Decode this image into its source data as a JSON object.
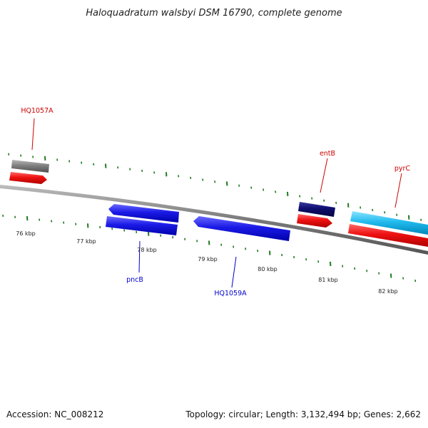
{
  "title": "Haloquadratum walsbyi DSM 16790, complete genome",
  "kbp_labels": [
    "76 kbp",
    "77 kbp",
    "78 kbp",
    "79 kbp",
    "80 kbp",
    "81 kbp",
    "82 kbp"
  ],
  "gene_labels": [
    {
      "name": "HQ1057A",
      "color": "#cc0000"
    },
    {
      "name": "entB",
      "color": "#cc0000"
    },
    {
      "name": "pyrC",
      "color": "#cc0000"
    },
    {
      "name": "pncB",
      "color": "#0000cc"
    },
    {
      "name": "HQ1059A",
      "color": "#0000cc"
    }
  ],
  "feature_colors": {
    "red": "#ee1111",
    "grey": "#808080",
    "blue": "#1a1ae6",
    "navy": "#0d0d6e",
    "cyan": "#22bbee",
    "backbone": "#8a8a8a",
    "tick": "#1f7a1f"
  },
  "footer": {
    "accession": "Accession: NC_008212",
    "summary": "Topology: circular; Length: 3,132,494 bp; Genes: 2,662"
  }
}
